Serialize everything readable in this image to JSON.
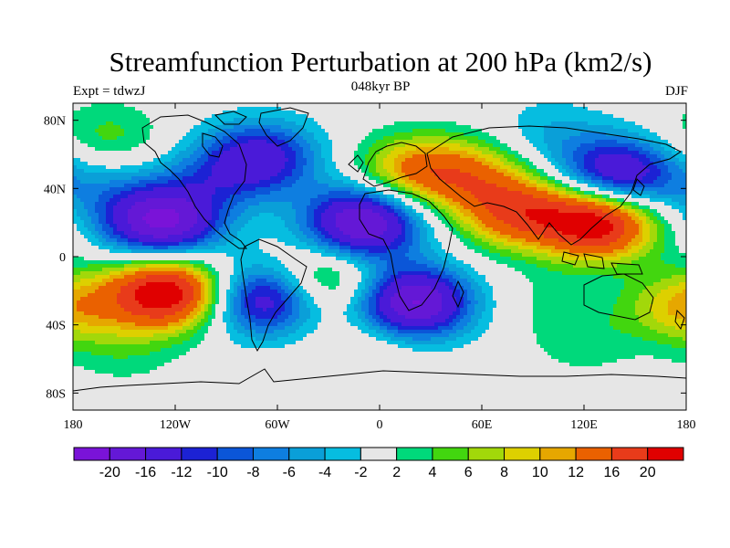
{
  "header": {
    "title": "Streamfunction Perturbation at 200 hPa (km2/s)",
    "left_label": "Expt = tdwzJ",
    "center_label": "048kyr BP",
    "right_label": "DJF"
  },
  "map": {
    "lon_range": [
      -180,
      180
    ],
    "lat_range": [
      -90,
      90
    ],
    "x_ticks": [
      {
        "value": -180,
        "label": "180"
      },
      {
        "value": -120,
        "label": "120W"
      },
      {
        "value": -60,
        "label": "60W"
      },
      {
        "value": 0,
        "label": "0"
      },
      {
        "value": 60,
        "label": "60E"
      },
      {
        "value": 120,
        "label": "120E"
      },
      {
        "value": 180,
        "label": "180"
      }
    ],
    "y_ticks": [
      {
        "value": 80,
        "label": "80N"
      },
      {
        "value": 40,
        "label": "40N"
      },
      {
        "value": 0,
        "label": "0"
      },
      {
        "value": -40,
        "label": "40S"
      },
      {
        "value": -80,
        "label": "80S"
      }
    ],
    "field_centers": [
      {
        "lon": -128,
        "lat": 20,
        "value": -21
      },
      {
        "lon": -70,
        "lat": 58,
        "value": -14
      },
      {
        "lon": -10,
        "lat": 20,
        "value": -21
      },
      {
        "lon": 140,
        "lat": 48,
        "value": -17
      },
      {
        "lon": 20,
        "lat": -27,
        "value": -21
      },
      {
        "lon": -68,
        "lat": -25,
        "value": -16
      },
      {
        "lon": 128,
        "lat": 20,
        "value": 23
      },
      {
        "lon": 80,
        "lat": 26,
        "value": 15
      },
      {
        "lon": -125,
        "lat": -21,
        "value": 24
      },
      {
        "lon": 20,
        "lat": 50,
        "value": 12
      },
      {
        "lon": 55,
        "lat": 48,
        "value": 9
      },
      {
        "lon": -32,
        "lat": -14,
        "value": 9
      },
      {
        "lon": 178,
        "lat": -29,
        "value": 10
      },
      {
        "lon": -160,
        "lat": 70,
        "value": 5
      },
      {
        "lon": -165,
        "lat": 40,
        "value": -4
      },
      {
        "lon": 100,
        "lat": 72,
        "value": -4
      },
      {
        "lon": 120,
        "lat": -50,
        "value": 3
      },
      {
        "lon": -5,
        "lat": -52,
        "value": 3
      },
      {
        "lon": 100,
        "lat": -25,
        "value": 2
      },
      {
        "lon": -150,
        "lat": -55,
        "value": 3
      },
      {
        "lon": -100,
        "lat": 45,
        "value": -5
      }
    ]
  },
  "colorbar": {
    "levels": [
      "-20",
      "-16",
      "-12",
      "-10",
      "-8",
      "-6",
      "-4",
      "-2",
      "2",
      "4",
      "6",
      "8",
      "10",
      "12",
      "16",
      "20"
    ],
    "level_values": [
      -20,
      -16,
      -12,
      -10,
      -8,
      -6,
      -4,
      -2,
      2,
      4,
      6,
      8,
      10,
      12,
      16,
      20
    ],
    "colors": [
      "#7a13d8",
      "#6418d6",
      "#4a1ad8",
      "#1c22d4",
      "#0b56d8",
      "#0e7ee0",
      "#0a9fd8",
      "#06bde0",
      "#e6e6e6",
      "#00d97b",
      "#42d60f",
      "#a2d80a",
      "#ddd000",
      "#e6a700",
      "#ea6100",
      "#e83b1a",
      "#e00000"
    ]
  }
}
